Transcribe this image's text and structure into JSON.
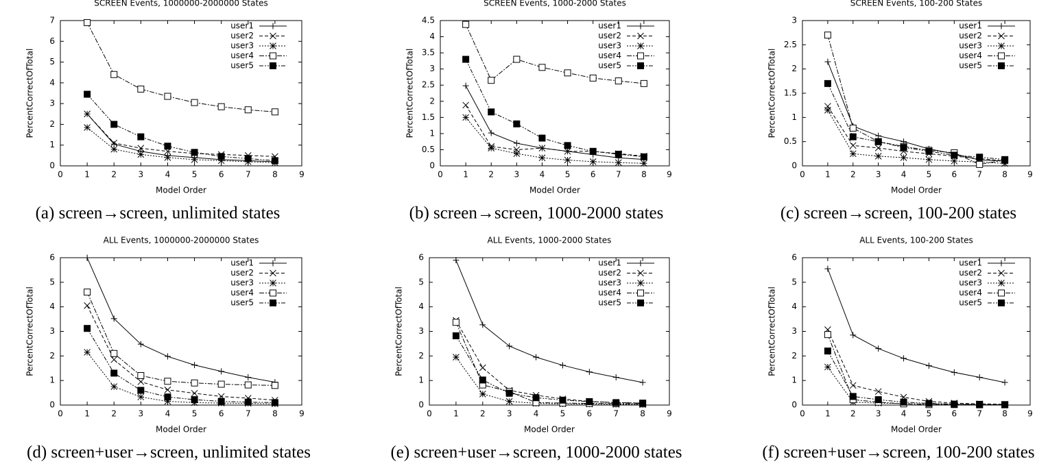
{
  "chart_data": [
    {
      "type": "line",
      "title": "SCREEN Events, 1000000-2000000 States",
      "caption": "(a) screen→screen, unlimited states",
      "x_label": "Model Order",
      "y_label": "PercentCorrectOfTotal",
      "x": [
        1,
        2,
        3,
        4,
        5,
        6,
        7,
        8
      ],
      "xlim": [
        0,
        9
      ],
      "xticks": [
        0,
        1,
        2,
        3,
        4,
        5,
        6,
        7,
        8,
        9
      ],
      "ylim": [
        0,
        7
      ],
      "yticks": [
        0,
        1,
        2,
        3,
        4,
        5,
        6,
        7
      ],
      "legend": "top-right",
      "series": [
        {
          "name": "user1",
          "color": "#000000",
          "marker": "plus",
          "values": [
            2.5,
            1.05,
            0.7,
            0.5,
            0.4,
            0.3,
            0.25,
            0.2
          ]
        },
        {
          "name": "user2",
          "color": "#000000",
          "marker": "cross",
          "values": [
            2.5,
            1.1,
            0.85,
            0.7,
            0.6,
            0.55,
            0.5,
            0.45
          ]
        },
        {
          "name": "user3",
          "color": "#000000",
          "marker": "star",
          "values": [
            1.85,
            0.8,
            0.55,
            0.4,
            0.3,
            0.25,
            0.2,
            0.15
          ]
        },
        {
          "name": "user4",
          "color": "#000000",
          "marker": "square",
          "values": [
            6.9,
            4.4,
            3.7,
            3.35,
            3.05,
            2.85,
            2.7,
            2.6
          ]
        },
        {
          "name": "user5",
          "color": "#000000",
          "marker": "filled-square",
          "values": [
            3.45,
            2.0,
            1.4,
            0.95,
            0.65,
            0.45,
            0.35,
            0.25
          ]
        }
      ]
    },
    {
      "type": "line",
      "title": "SCREEN Events, 1000-2000 States",
      "caption": "(b) screen→screen, 1000-2000 states",
      "x_label": "Model Order",
      "y_label": "PercentCorrectOfTotal",
      "x": [
        1,
        2,
        3,
        4,
        5,
        6,
        7,
        8
      ],
      "xlim": [
        0,
        9
      ],
      "xticks": [
        0,
        1,
        2,
        3,
        4,
        5,
        6,
        7,
        8,
        9
      ],
      "ylim": [
        0,
        4.5
      ],
      "yticks": [
        0,
        0.5,
        1,
        1.5,
        2,
        2.5,
        3,
        3.5,
        4,
        4.5
      ],
      "legend": "top-right",
      "series": [
        {
          "name": "user1",
          "color": "#000000",
          "marker": "plus",
          "values": [
            2.48,
            1.02,
            0.7,
            0.55,
            0.45,
            0.35,
            0.25,
            0.2
          ]
        },
        {
          "name": "user2",
          "color": "#000000",
          "marker": "cross",
          "values": [
            1.88,
            0.6,
            0.5,
            0.55,
            0.45,
            0.45,
            0.38,
            0.3
          ]
        },
        {
          "name": "user3",
          "color": "#000000",
          "marker": "star",
          "values": [
            1.5,
            0.55,
            0.38,
            0.25,
            0.18,
            0.13,
            0.1,
            0.08
          ]
        },
        {
          "name": "user4",
          "color": "#000000",
          "marker": "square",
          "values": [
            4.38,
            2.65,
            3.3,
            3.05,
            2.88,
            2.72,
            2.63,
            2.55
          ]
        },
        {
          "name": "user5",
          "color": "#000000",
          "marker": "filled-square",
          "values": [
            3.3,
            1.67,
            1.3,
            0.86,
            0.63,
            0.45,
            0.36,
            0.28
          ]
        }
      ]
    },
    {
      "type": "line",
      "title": "SCREEN Events, 100-200 States",
      "caption": "(c) screen→screen, 100-200 states",
      "x_label": "Model Order",
      "y_label": "PercentCorrectOfTotal",
      "x": [
        1,
        2,
        3,
        4,
        5,
        6,
        7,
        8
      ],
      "xlim": [
        0,
        9
      ],
      "xticks": [
        0,
        1,
        2,
        3,
        4,
        5,
        6,
        7,
        8,
        9
      ],
      "ylim": [
        0,
        3
      ],
      "yticks": [
        0,
        0.5,
        1,
        1.5,
        2,
        2.5,
        3
      ],
      "legend": "top-right",
      "series": [
        {
          "name": "user1",
          "color": "#000000",
          "marker": "plus",
          "values": [
            2.15,
            0.82,
            0.62,
            0.5,
            0.35,
            0.25,
            0.12,
            0.1
          ]
        },
        {
          "name": "user2",
          "color": "#000000",
          "marker": "cross",
          "values": [
            1.23,
            0.42,
            0.37,
            0.3,
            0.25,
            0.2,
            0.15,
            0.1
          ]
        },
        {
          "name": "user3",
          "color": "#000000",
          "marker": "star",
          "values": [
            1.15,
            0.25,
            0.2,
            0.17,
            0.13,
            0.1,
            0.08,
            0.05
          ]
        },
        {
          "name": "user4",
          "color": "#000000",
          "marker": "square",
          "values": [
            2.7,
            0.78,
            0.5,
            0.4,
            0.32,
            0.27,
            0.03,
            0.12
          ]
        },
        {
          "name": "user5",
          "color": "#000000",
          "marker": "filled-square",
          "values": [
            1.7,
            0.6,
            0.5,
            0.38,
            0.3,
            0.22,
            0.18,
            0.13
          ]
        }
      ]
    },
    {
      "type": "line",
      "title": "ALL Events, 1000000-2000000 States",
      "caption": "(d) screen+user→screen, unlimited states",
      "x_label": "Model Order",
      "y_label": "PercentCorrectOfTotal",
      "x": [
        1,
        2,
        3,
        4,
        5,
        6,
        7,
        8
      ],
      "xlim": [
        0,
        9
      ],
      "xticks": [
        0,
        1,
        2,
        3,
        4,
        5,
        6,
        7,
        8,
        9
      ],
      "ylim": [
        0,
        6
      ],
      "yticks": [
        0,
        1,
        2,
        3,
        4,
        5,
        6
      ],
      "legend": "top-right",
      "series": [
        {
          "name": "user1",
          "color": "#000000",
          "marker": "plus",
          "values": [
            6.0,
            3.52,
            2.48,
            1.98,
            1.63,
            1.37,
            1.13,
            0.93
          ]
        },
        {
          "name": "user2",
          "color": "#000000",
          "marker": "cross",
          "values": [
            4.05,
            1.85,
            0.95,
            0.62,
            0.48,
            0.35,
            0.28,
            0.2
          ]
        },
        {
          "name": "user3",
          "color": "#000000",
          "marker": "star",
          "values": [
            2.15,
            0.75,
            0.33,
            0.15,
            0.1,
            0.08,
            0.07,
            0.05
          ]
        },
        {
          "name": "user4",
          "color": "#000000",
          "marker": "square",
          "values": [
            4.6,
            2.1,
            1.2,
            0.97,
            0.9,
            0.85,
            0.82,
            0.8
          ]
        },
        {
          "name": "user5",
          "color": "#000000",
          "marker": "filled-square",
          "values": [
            3.12,
            1.3,
            0.6,
            0.33,
            0.22,
            0.15,
            0.12,
            0.1
          ]
        }
      ]
    },
    {
      "type": "line",
      "title": "ALL Events, 1000-2000 States",
      "caption": "(e) screen+user→screen, 1000-2000 states",
      "x_label": "Model Order",
      "y_label": "PercentCorrectOfTotal",
      "x": [
        1,
        2,
        3,
        4,
        5,
        6,
        7,
        8
      ],
      "xlim": [
        0,
        9
      ],
      "xticks": [
        0,
        1,
        2,
        3,
        4,
        5,
        6,
        7,
        8,
        9
      ],
      "ylim": [
        0,
        6
      ],
      "yticks": [
        0,
        1,
        2,
        3,
        4,
        5,
        6
      ],
      "legend": "top-right",
      "series": [
        {
          "name": "user1",
          "color": "#000000",
          "marker": "plus",
          "values": [
            5.9,
            3.27,
            2.4,
            1.95,
            1.62,
            1.35,
            1.13,
            0.92
          ]
        },
        {
          "name": "user2",
          "color": "#000000",
          "marker": "cross",
          "values": [
            3.45,
            1.52,
            0.6,
            0.4,
            0.25,
            0.15,
            0.1,
            0.08
          ]
        },
        {
          "name": "user3",
          "color": "#000000",
          "marker": "star",
          "values": [
            1.95,
            0.45,
            0.15,
            0.07,
            0.05,
            0.04,
            0.03,
            0.02
          ]
        },
        {
          "name": "user4",
          "color": "#000000",
          "marker": "square",
          "values": [
            3.37,
            0.82,
            0.55,
            0.1,
            0.08,
            0.07,
            0.06,
            0.05
          ]
        },
        {
          "name": "user5",
          "color": "#000000",
          "marker": "filled-square",
          "values": [
            2.82,
            1.02,
            0.48,
            0.3,
            0.2,
            0.14,
            0.1,
            0.08
          ]
        }
      ]
    },
    {
      "type": "line",
      "title": "ALL Events, 100-200 States",
      "caption": "(f) screen+user→screen, 100-200 states",
      "x_label": "Model Order",
      "y_label": "PercentCorrectOfTotal",
      "x": [
        1,
        2,
        3,
        4,
        5,
        6,
        7,
        8
      ],
      "xlim": [
        0,
        9
      ],
      "xticks": [
        0,
        1,
        2,
        3,
        4,
        5,
        6,
        7,
        8,
        9
      ],
      "ylim": [
        0,
        6
      ],
      "yticks": [
        0,
        1,
        2,
        3,
        4,
        5,
        6
      ],
      "legend": "top-right",
      "series": [
        {
          "name": "user1",
          "color": "#000000",
          "marker": "plus",
          "values": [
            5.55,
            2.85,
            2.3,
            1.9,
            1.6,
            1.33,
            1.13,
            0.92
          ]
        },
        {
          "name": "user2",
          "color": "#000000",
          "marker": "cross",
          "values": [
            3.07,
            0.8,
            0.55,
            0.32,
            0.15,
            0.08,
            0.05,
            0.03
          ]
        },
        {
          "name": "user3",
          "color": "#000000",
          "marker": "star",
          "values": [
            1.55,
            0.12,
            0.08,
            0.06,
            0.04,
            0.03,
            0.02,
            0.01
          ]
        },
        {
          "name": "user4",
          "color": "#000000",
          "marker": "square",
          "values": [
            2.87,
            0.22,
            0.12,
            0.05,
            0.02,
            0.02,
            0.01,
            0.01
          ]
        },
        {
          "name": "user5",
          "color": "#000000",
          "marker": "filled-square",
          "values": [
            2.2,
            0.35,
            0.22,
            0.12,
            0.07,
            0.04,
            0.03,
            0.02
          ]
        }
      ]
    }
  ]
}
